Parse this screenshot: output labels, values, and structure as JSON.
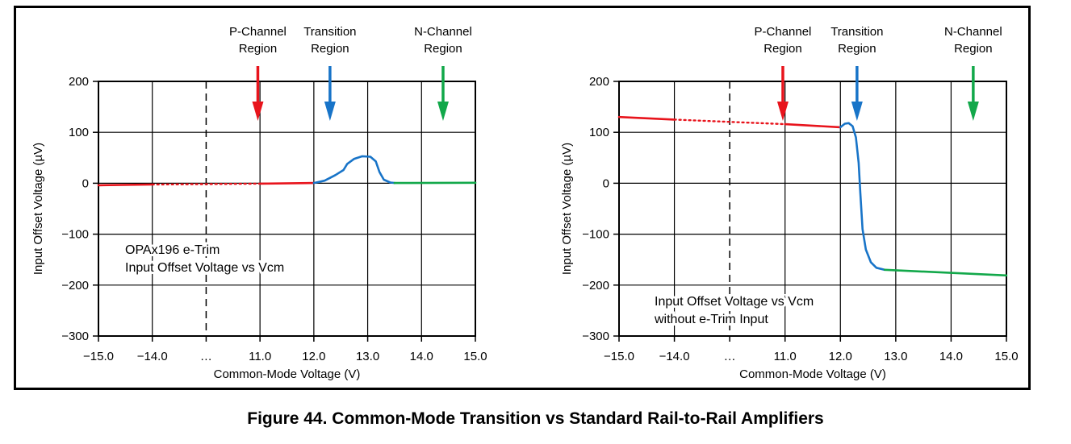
{
  "figure_caption": "Figure 44.  Common-Mode Transition vs Standard Rail-to-Rail Amplifiers",
  "colors": {
    "p_channel": "#e8141c",
    "transition": "#1874c8",
    "n_channel": "#12a84a"
  },
  "chart_data": [
    {
      "type": "line",
      "title": "",
      "annotation": [
        "OPAx196 e-Trim",
        "Input Offset Voltage vs Vcm"
      ],
      "xlabel": "Common-Mode Voltage (V)",
      "ylabel": "Input Offset Voltage (µV)",
      "x_ticks": [
        "−15.0",
        "−14.0",
        "…",
        "11.0",
        "12.0",
        "13.0",
        "14.0",
        "15.0"
      ],
      "y_ticks": [
        "200",
        "100",
        "0",
        "−100",
        "−200",
        "−300"
      ],
      "ylim": [
        -300,
        200
      ],
      "grid": true,
      "region_labels": [
        {
          "line1": "P-Channel",
          "line2": "Region",
          "color": "#e8141c"
        },
        {
          "line1": "Transition",
          "line2": "Region",
          "color": "#1874c8"
        },
        {
          "line1": "N-Channel",
          "line2": "Region",
          "color": "#12a84a"
        }
      ],
      "series": [
        {
          "color": "#e8141c",
          "segments": [
            {
              "style": "solid",
              "points": [
                [
                  -15.0,
                  -4
                ],
                [
                  -14.0,
                  -2.5
                ]
              ]
            },
            {
              "style": "dotted",
              "points": [
                [
                  -14.0,
                  -2.5
                ],
                [
                  11.0,
                  -0.8
                ]
              ]
            },
            {
              "style": "solid",
              "points": [
                [
                  11.0,
                  -0.8
                ],
                [
                  12.0,
                  0.5
                ]
              ]
            }
          ]
        },
        {
          "color": "#1874c8",
          "segments": [
            {
              "style": "solid",
              "points": [
                [
                  12.0,
                  0.5
                ],
                [
                  12.2,
                  5
                ],
                [
                  12.4,
                  16
                ],
                [
                  12.55,
                  26
                ],
                [
                  12.62,
                  38
                ],
                [
                  12.75,
                  48
                ],
                [
                  12.9,
                  53
                ],
                [
                  13.05,
                  52
                ],
                [
                  13.15,
                  43
                ],
                [
                  13.22,
                  22
                ],
                [
                  13.3,
                  7
                ],
                [
                  13.42,
                  1.5
                ],
                [
                  13.5,
                  0.5
                ]
              ]
            }
          ]
        },
        {
          "color": "#12a84a",
          "segments": [
            {
              "style": "solid",
              "points": [
                [
                  13.5,
                  0.5
                ],
                [
                  15.0,
                  1
                ]
              ]
            }
          ]
        }
      ]
    },
    {
      "type": "line",
      "title": "",
      "annotation": [
        "Input Offset Voltage vs Vcm",
        "without e-Trim Input"
      ],
      "xlabel": "Common-Mode Voltage (V)",
      "ylabel": "Input Offset Voltage (µV)",
      "x_ticks": [
        "−15.0",
        "−14.0",
        "…",
        "11.0",
        "12.0",
        "13.0",
        "14.0",
        "15.0"
      ],
      "y_ticks": [
        "200",
        "100",
        "0",
        "−100",
        "−200",
        "−300"
      ],
      "ylim": [
        -300,
        200
      ],
      "grid": true,
      "region_labels": [
        {
          "line1": "P-Channel",
          "line2": "Region",
          "color": "#e8141c"
        },
        {
          "line1": "Transition",
          "line2": "Region",
          "color": "#1874c8"
        },
        {
          "line1": "N-Channel",
          "line2": "Region",
          "color": "#12a84a"
        }
      ],
      "series": [
        {
          "color": "#e8141c",
          "segments": [
            {
              "style": "solid",
              "points": [
                [
                  -15.0,
                  130
                ],
                [
                  -14.0,
                  125
                ]
              ]
            },
            {
              "style": "dotted",
              "points": [
                [
                  -14.0,
                  125
                ],
                [
                  11.0,
                  116
                ]
              ]
            },
            {
              "style": "solid",
              "points": [
                [
                  11.0,
                  116
                ],
                [
                  12.0,
                  110
                ]
              ]
            }
          ]
        },
        {
          "color": "#1874c8",
          "segments": [
            {
              "style": "solid",
              "points": [
                [
                  12.0,
                  110
                ],
                [
                  12.08,
                  117
                ],
                [
                  12.15,
                  118
                ],
                [
                  12.22,
                  112
                ],
                [
                  12.28,
                  90
                ],
                [
                  12.33,
                  40
                ],
                [
                  12.36,
                  -20
                ],
                [
                  12.4,
                  -90
                ],
                [
                  12.46,
                  -130
                ],
                [
                  12.55,
                  -155
                ],
                [
                  12.65,
                  -166
                ],
                [
                  12.8,
                  -170
                ]
              ]
            }
          ]
        },
        {
          "color": "#12a84a",
          "segments": [
            {
              "style": "solid",
              "points": [
                [
                  12.8,
                  -170
                ],
                [
                  15.0,
                  -181
                ]
              ]
            }
          ]
        }
      ]
    }
  ]
}
